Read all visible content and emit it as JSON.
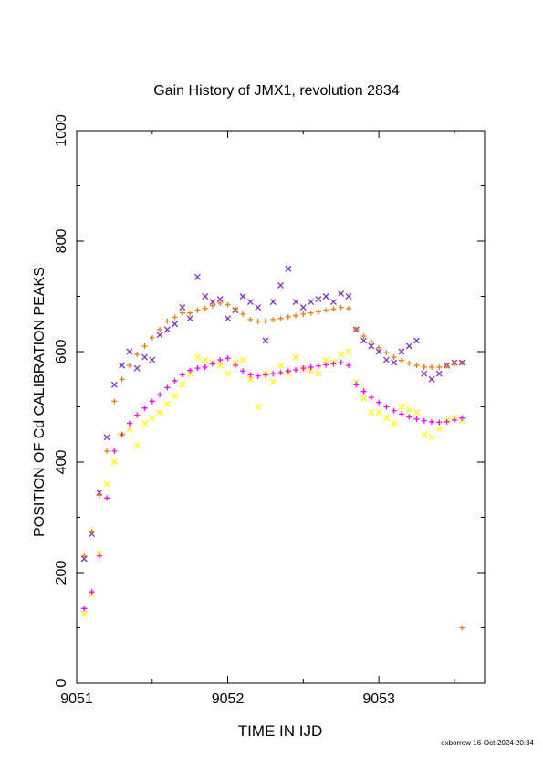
{
  "footer": "oxborrow 16-Oct-2024 20:34",
  "chart_data": {
    "type": "scatter",
    "title": "Gain History of JMX1, revolution 2834",
    "xlabel": "TIME IN IJD",
    "ylabel": "POSITION OF Cd CALIBRATION PEAKS",
    "xlim": [
      9051,
      9053.7
    ],
    "ylim": [
      0,
      1000
    ],
    "xticks": [
      9051,
      9052,
      9053
    ],
    "yticks": [
      0,
      200,
      400,
      600,
      800,
      1000
    ],
    "grid": false,
    "legend": "none",
    "series": [
      {
        "marker": "x",
        "color": "#7b2fd0",
        "x": [
          9051.05,
          9051.1,
          9051.15,
          9051.2,
          9051.25,
          9051.3,
          9051.35,
          9051.4,
          9051.45,
          9051.5,
          9051.55,
          9051.6,
          9051.65,
          9051.7,
          9051.75,
          9051.8,
          9051.85,
          9051.9,
          9051.95,
          9052.0,
          9052.05,
          9052.1,
          9052.15,
          9052.2,
          9052.25,
          9052.3,
          9052.35,
          9052.4,
          9052.45,
          9052.5,
          9052.55,
          9052.6,
          9052.65,
          9052.7,
          9052.75,
          9052.8,
          9052.85,
          9052.9,
          9052.95,
          9053.0,
          9053.05,
          9053.1,
          9053.15,
          9053.2,
          9053.25,
          9053.3,
          9053.35,
          9053.4,
          9053.45,
          9053.5,
          9053.55
        ],
        "y": [
          225,
          270,
          345,
          445,
          540,
          575,
          600,
          570,
          590,
          585,
          630,
          640,
          650,
          680,
          660,
          735,
          700,
          690,
          695,
          660,
          675,
          700,
          690,
          680,
          620,
          690,
          720,
          750,
          690,
          680,
          690,
          695,
          700,
          690,
          705,
          700,
          640,
          620,
          610,
          600,
          585,
          580,
          600,
          610,
          620,
          560,
          550,
          560,
          575,
          580,
          580
        ]
      },
      {
        "marker": "+",
        "color": "#f07d12",
        "x": [
          9051.05,
          9051.1,
          9051.15,
          9051.2,
          9051.25,
          9051.3,
          9051.35,
          9051.4,
          9051.45,
          9051.5,
          9051.55,
          9051.6,
          9051.65,
          9051.7,
          9051.75,
          9051.8,
          9051.85,
          9051.9,
          9051.95,
          9052.0,
          9052.05,
          9052.1,
          9052.15,
          9052.2,
          9052.25,
          9052.3,
          9052.35,
          9052.4,
          9052.45,
          9052.5,
          9052.55,
          9052.6,
          9052.65,
          9052.7,
          9052.75,
          9052.8,
          9052.85,
          9052.9,
          9052.95,
          9053.0,
          9053.05,
          9053.1,
          9053.15,
          9053.2,
          9053.25,
          9053.3,
          9053.35,
          9053.4,
          9053.45,
          9053.5,
          9053.55,
          9053.55
        ],
        "y": [
          230,
          275,
          340,
          420,
          510,
          550,
          575,
          595,
          610,
          625,
          640,
          655,
          662,
          670,
          670,
          675,
          678,
          683,
          688,
          685,
          678,
          668,
          658,
          655,
          655,
          658,
          660,
          663,
          665,
          668,
          670,
          672,
          675,
          677,
          680,
          678,
          640,
          628,
          618,
          607,
          598,
          590,
          584,
          579,
          575,
          572,
          572,
          572,
          574,
          577,
          580,
          100
        ]
      },
      {
        "marker": "x",
        "color": "#ffff00",
        "x": [
          9051.05,
          9051.1,
          9051.15,
          9051.2,
          9051.25,
          9051.3,
          9051.35,
          9051.4,
          9051.45,
          9051.5,
          9051.55,
          9051.6,
          9051.65,
          9051.7,
          9051.75,
          9051.8,
          9051.85,
          9051.9,
          9051.95,
          9052.0,
          9052.05,
          9052.1,
          9052.15,
          9052.2,
          9052.25,
          9052.3,
          9052.35,
          9052.4,
          9052.45,
          9052.5,
          9052.55,
          9052.6,
          9052.65,
          9052.7,
          9052.75,
          9052.8,
          9052.85,
          9052.9,
          9052.95,
          9053.0,
          9053.05,
          9053.1,
          9053.15,
          9053.2,
          9053.25,
          9053.3,
          9053.35,
          9053.4,
          9053.45,
          9053.5,
          9053.55
        ],
        "y": [
          125,
          160,
          235,
          360,
          400,
          450,
          460,
          430,
          470,
          480,
          490,
          505,
          520,
          540,
          560,
          590,
          585,
          580,
          575,
          560,
          580,
          585,
          550,
          500,
          560,
          545,
          575,
          560,
          590,
          570,
          565,
          560,
          585,
          580,
          595,
          600,
          545,
          515,
          490,
          490,
          480,
          470,
          500,
          495,
          490,
          450,
          445,
          460,
          475,
          480,
          475
        ]
      },
      {
        "marker": "+",
        "color": "#ff00ff",
        "x": [
          9051.05,
          9051.1,
          9051.15,
          9051.2,
          9051.25,
          9051.3,
          9051.35,
          9051.4,
          9051.45,
          9051.5,
          9051.55,
          9051.6,
          9051.65,
          9051.7,
          9051.75,
          9051.8,
          9051.85,
          9051.9,
          9051.95,
          9052.0,
          9052.05,
          9052.1,
          9052.15,
          9052.2,
          9052.25,
          9052.3,
          9052.35,
          9052.4,
          9052.45,
          9052.5,
          9052.55,
          9052.6,
          9052.65,
          9052.7,
          9052.75,
          9052.8,
          9052.85,
          9052.9,
          9052.95,
          9053.0,
          9053.05,
          9053.1,
          9053.15,
          9053.2,
          9053.25,
          9053.3,
          9053.35,
          9053.4,
          9053.45,
          9053.5,
          9053.55
        ],
        "y": [
          135,
          165,
          230,
          335,
          420,
          450,
          470,
          485,
          498,
          510,
          522,
          535,
          547,
          558,
          566,
          570,
          572,
          578,
          585,
          588,
          575,
          565,
          558,
          556,
          558,
          560,
          562,
          565,
          567,
          570,
          572,
          574,
          576,
          578,
          580,
          575,
          540,
          528,
          517,
          508,
          500,
          493,
          487,
          482,
          478,
          475,
          473,
          472,
          473,
          476,
          480
        ]
      }
    ]
  }
}
